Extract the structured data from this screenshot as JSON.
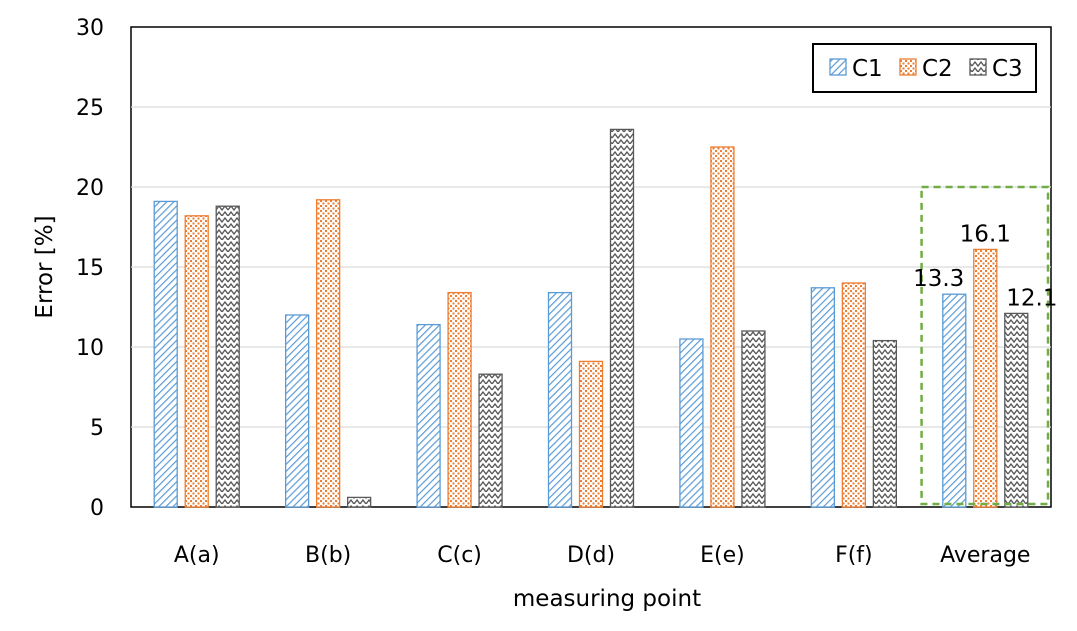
{
  "chart_data": {
    "type": "bar",
    "categories": [
      "A(a)",
      "B(b)",
      "C(c)",
      "D(d)",
      "E(e)",
      "F(f)",
      "Average"
    ],
    "series": [
      {
        "name": "C1",
        "values": [
          19.1,
          12.0,
          11.4,
          13.4,
          10.5,
          13.7,
          13.3
        ],
        "color": "#5b9bd5",
        "pattern": "diag-lines"
      },
      {
        "name": "C2",
        "values": [
          18.2,
          19.2,
          13.4,
          9.1,
          22.5,
          14.0,
          16.1
        ],
        "color": "#ed7d31",
        "pattern": "dots"
      },
      {
        "name": "C3",
        "values": [
          18.8,
          0.6,
          8.3,
          23.6,
          11.0,
          10.4,
          12.1
        ],
        "color": "#595959",
        "pattern": "zigzag"
      }
    ],
    "data_labels": [
      {
        "category": "Average",
        "series": "C1",
        "text": "13.3"
      },
      {
        "category": "Average",
        "series": "C2",
        "text": "16.1"
      },
      {
        "category": "Average",
        "series": "C3",
        "text": "12.1"
      }
    ],
    "highlight": {
      "category": "Average",
      "style": "dashed",
      "color": "#70ad47",
      "top_value": 20
    },
    "xlabel": "measuring point",
    "ylabel": "Error [%]",
    "ylim": [
      0,
      30
    ],
    "yticks": [
      0,
      5,
      10,
      15,
      20,
      25,
      30
    ],
    "grid": true,
    "legend": "top-right"
  }
}
